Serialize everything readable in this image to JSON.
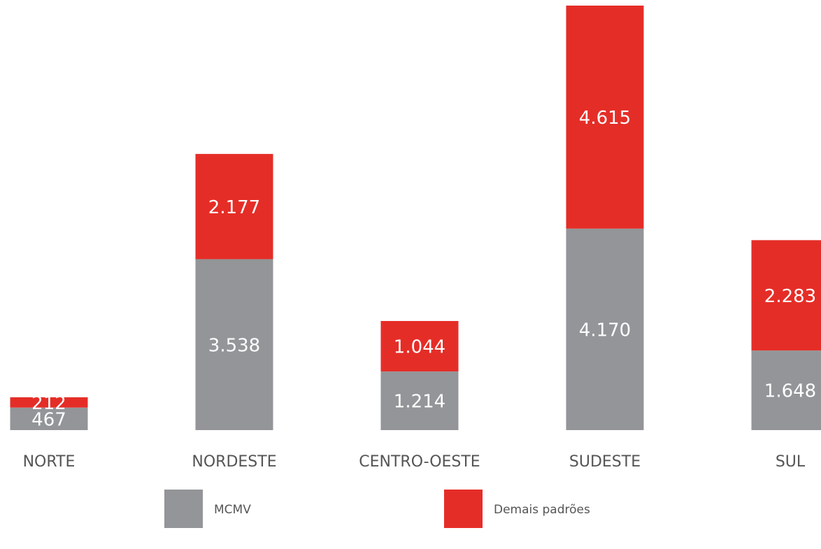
{
  "chart_data": {
    "type": "stacked_bar",
    "categories": [
      "NORTE",
      "NORDESTE",
      "CENTRO-OESTE",
      "SUDESTE",
      "SUL"
    ],
    "series": [
      {
        "name": "MCMV",
        "color": "#939598",
        "values": [
          467,
          3538,
          1214,
          4170,
          1648
        ],
        "value_labels": [
          "467",
          "3.538",
          "1.214",
          "4.170",
          "1.648"
        ]
      },
      {
        "name": "Demais padrões",
        "color": "#e52d27",
        "values": [
          212,
          2177,
          1044,
          4615,
          2283
        ],
        "value_labels": [
          "212",
          "2.177",
          "1.044",
          "4.615",
          "2.283"
        ]
      }
    ],
    "legend": "bottom"
  }
}
